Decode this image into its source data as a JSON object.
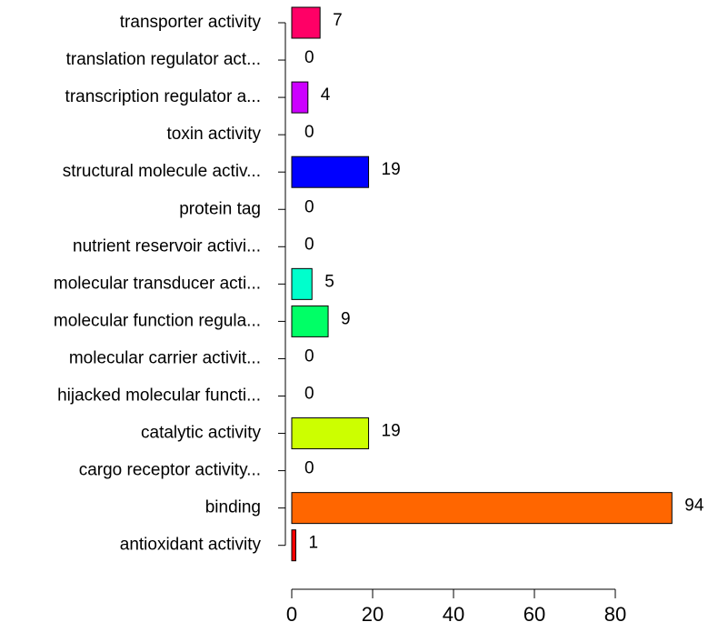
{
  "chart_data": {
    "type": "bar",
    "orientation": "horizontal",
    "title": "",
    "xlabel": "",
    "ylabel": "",
    "xlim": [
      0,
      94
    ],
    "x_ticks": [
      0,
      20,
      40,
      60,
      80
    ],
    "grid": false,
    "categories": [
      "transporter activity",
      "translation regulator act...",
      "transcription regulator a...",
      "toxin activity",
      "structural molecule activ...",
      "protein tag",
      "nutrient reservoir activi...",
      "molecular transducer acti...",
      "molecular function regula...",
      "molecular carrier activit...",
      "hijacked molecular functi...",
      "catalytic activity",
      "cargo receptor activity...",
      "binding",
      "antioxidant activity"
    ],
    "values": [
      7,
      0,
      4,
      0,
      19,
      0,
      0,
      5,
      9,
      0,
      0,
      19,
      0,
      94,
      1
    ],
    "value_labels": [
      "7",
      "0",
      "4",
      "0",
      "19",
      "0",
      "0",
      "5",
      "9",
      "0",
      "0",
      "19",
      "0",
      "94",
      "1"
    ],
    "colors": [
      "#FF0066",
      "#FF00CC",
      "#CC00FF",
      "#6600FF",
      "#0000FF",
      "#0066FF",
      "#00CCFF",
      "#00FFCC",
      "#00FF66",
      "#00FF00",
      "#66FF00",
      "#CCFF00",
      "#FFCC00",
      "#FF6600",
      "#FF0000"
    ]
  }
}
